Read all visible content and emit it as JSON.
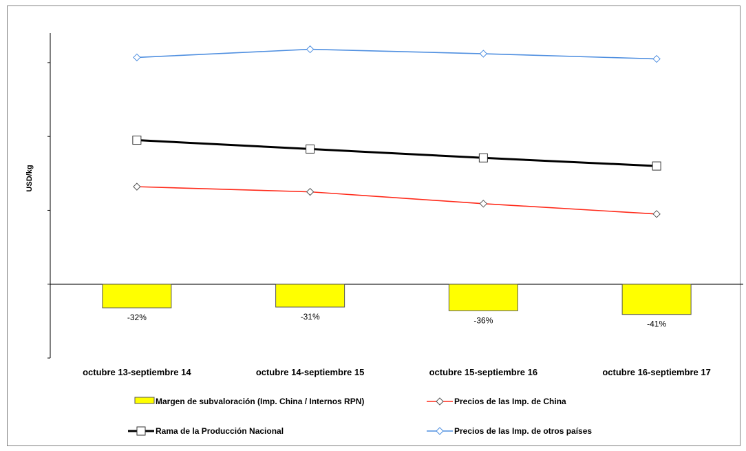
{
  "chart_data": {
    "type": "line",
    "ylabel": "USD/kg",
    "categories": [
      "octubre 13-septiembre 14",
      "octubre 14-septiembre 15",
      "octubre 15-septiembre 16",
      "octubre 16-septiembre 17"
    ],
    "grid": false,
    "legend_position": "bottom",
    "bars": {
      "name": "Margen de subvaloración (Imp. China / Internos RPN)",
      "values": [
        -32,
        -31,
        -36,
        -41
      ],
      "labels": [
        "-32%",
        "-31%",
        "-36%",
        "-41%"
      ],
      "color": "#ffff00",
      "unit": "%"
    },
    "series": [
      {
        "name": "Precios de las Imp. de China",
        "values": [
          1.32,
          1.25,
          1.09,
          0.95
        ],
        "color": "#ff2a1a",
        "marker": "diamond"
      },
      {
        "name": "Rama de la Producción Nacional",
        "values": [
          1.95,
          1.83,
          1.71,
          1.6
        ],
        "color": "#000000",
        "marker": "square"
      },
      {
        "name": "Precios de las Imp. de otros países",
        "values": [
          3.07,
          3.18,
          3.12,
          3.05
        ],
        "color": "#4f8fe0",
        "marker": "diamond"
      }
    ],
    "ylim": [
      -1.0,
      3.4
    ],
    "yticks": [
      -1.0,
      0,
      1.0,
      2.0,
      3.0
    ],
    "legend": [
      {
        "label": "Margen de subvaloración (Imp. China / Internos RPN)",
        "kind": "bar",
        "color": "#ffff00"
      },
      {
        "label": "Precios de las Imp. de China",
        "kind": "line",
        "color": "#ff2a1a",
        "marker": "diamond"
      },
      {
        "label": "Rama de la Producción Nacional",
        "kind": "line",
        "color": "#000000",
        "marker": "square"
      },
      {
        "label": "Precios de las Imp. de otros países",
        "kind": "line",
        "color": "#4f8fe0",
        "marker": "diamond"
      }
    ]
  }
}
